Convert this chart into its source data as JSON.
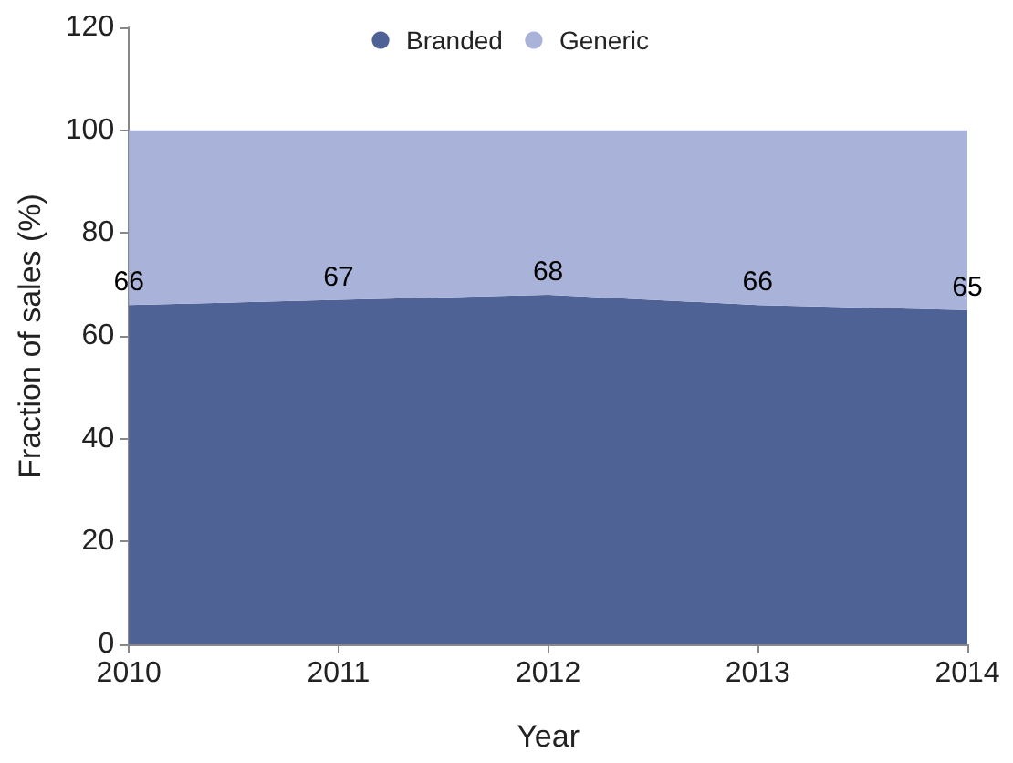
{
  "chart_data": {
    "type": "area",
    "stacked": true,
    "xlabel": "Year",
    "ylabel": "Fraction of sales (%)",
    "categories": [
      "2010",
      "2011",
      "2012",
      "2013",
      "2014"
    ],
    "series": [
      {
        "name": "Branded",
        "color": "#4f6296",
        "values": [
          66,
          67,
          68,
          66,
          65
        ],
        "value_labels": [
          "66",
          "67",
          "68",
          "66",
          "65"
        ]
      },
      {
        "name": "Generic",
        "color": "#a9b3d9",
        "values": [
          34,
          33,
          32,
          34,
          35
        ]
      }
    ],
    "ylim": [
      0,
      120
    ],
    "yticks": [
      0,
      20,
      40,
      60,
      80,
      100,
      120
    ],
    "grid": false,
    "legend": "top"
  }
}
